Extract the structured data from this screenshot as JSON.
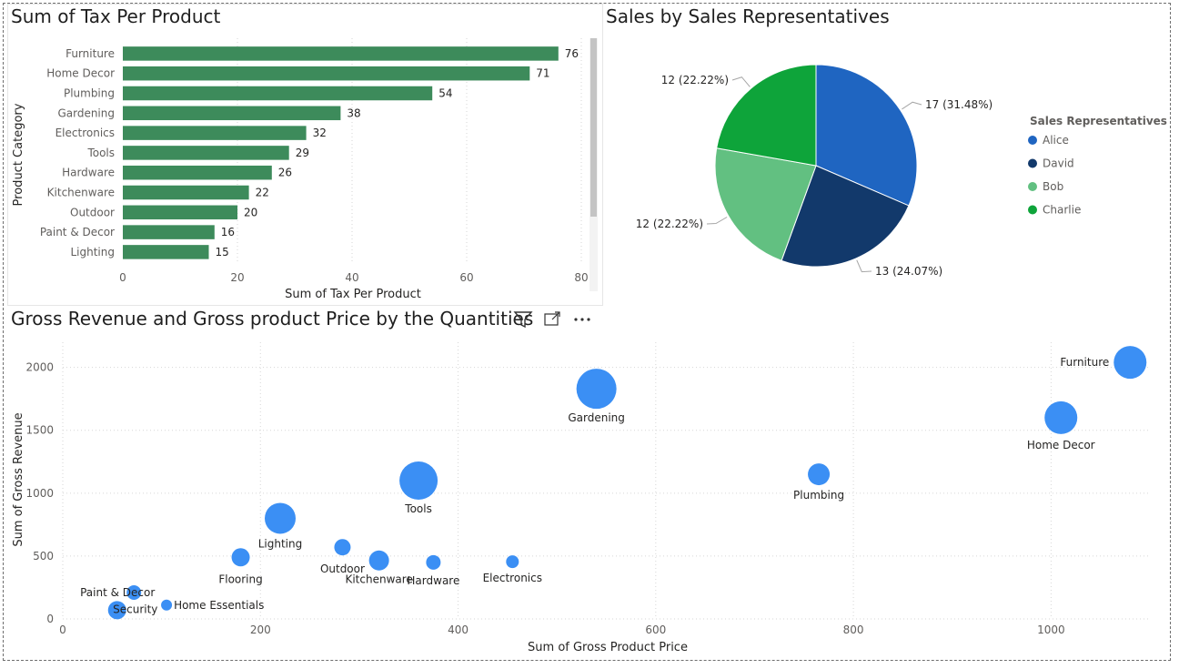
{
  "chart_data": [
    {
      "type": "bar",
      "orientation": "horizontal",
      "title": "Sum of Tax Per Product",
      "xlabel": "Sum of Tax Per Product",
      "ylabel": "Product Category",
      "categories": [
        "Furniture",
        "Home Decor",
        "Plumbing",
        "Gardening",
        "Electronics",
        "Tools",
        "Hardware",
        "Kitchenware",
        "Outdoor",
        "Paint & Decor",
        "Lighting"
      ],
      "values": [
        76,
        71,
        54,
        38,
        32,
        29,
        26,
        22,
        20,
        16,
        15
      ],
      "xlim": [
        0,
        80
      ],
      "xticks": [
        0,
        20,
        40,
        60,
        80
      ],
      "color": "#3d8b5b"
    },
    {
      "type": "pie",
      "title": "Sales by Sales Representatives",
      "legend_title": "Sales Representatives",
      "slices": [
        {
          "name": "Alice",
          "value": 17,
          "label": "17 (31.48%)",
          "color": "#1f65c1"
        },
        {
          "name": "David",
          "value": 13,
          "label": "13 (24.07%)",
          "color": "#12396b"
        },
        {
          "name": "Bob",
          "value": 12,
          "label": "12 (22.22%)",
          "color": "#62c081"
        },
        {
          "name": "Charlie",
          "value": 12,
          "label": "12 (22.22%)",
          "color": "#0ea43a"
        }
      ]
    },
    {
      "type": "scatter",
      "title": "Gross Revenue and Gross product Price by the Quantities",
      "xlabel": "Sum of Gross Product Price",
      "ylabel": "Sum of Gross Revenue",
      "xlim": [
        0,
        1100
      ],
      "ylim": [
        0,
        2200
      ],
      "xticks": [
        0,
        200,
        400,
        600,
        800,
        1000
      ],
      "yticks": [
        0,
        500,
        1000,
        1500,
        2000
      ],
      "color": "#3b8ff4",
      "points": [
        {
          "label": "Furniture",
          "x": 1080,
          "y": 2040,
          "size": 18
        },
        {
          "label": "Gardening",
          "x": 540,
          "y": 1830,
          "size": 22
        },
        {
          "label": "Home Decor",
          "x": 1010,
          "y": 1600,
          "size": 18
        },
        {
          "label": "Plumbing",
          "x": 765,
          "y": 1150,
          "size": 12
        },
        {
          "label": "Tools",
          "x": 360,
          "y": 1100,
          "size": 21
        },
        {
          "label": "Lighting",
          "x": 220,
          "y": 800,
          "size": 17
        },
        {
          "label": "Outdoor",
          "x": 283,
          "y": 570,
          "size": 9
        },
        {
          "label": "Flooring",
          "x": 180,
          "y": 490,
          "size": 10
        },
        {
          "label": "Kitchenware",
          "x": 320,
          "y": 465,
          "size": 11
        },
        {
          "label": "Hardware",
          "x": 375,
          "y": 450,
          "size": 8
        },
        {
          "label": "Electronics",
          "x": 455,
          "y": 455,
          "size": 7
        },
        {
          "label": "Paint & Decor",
          "x": 72,
          "y": 210,
          "size": 8
        },
        {
          "label": "Home Essentials",
          "x": 105,
          "y": 110,
          "size": 6
        },
        {
          "label": "Security",
          "x": 55,
          "y": 70,
          "size": 10
        }
      ]
    }
  ]
}
